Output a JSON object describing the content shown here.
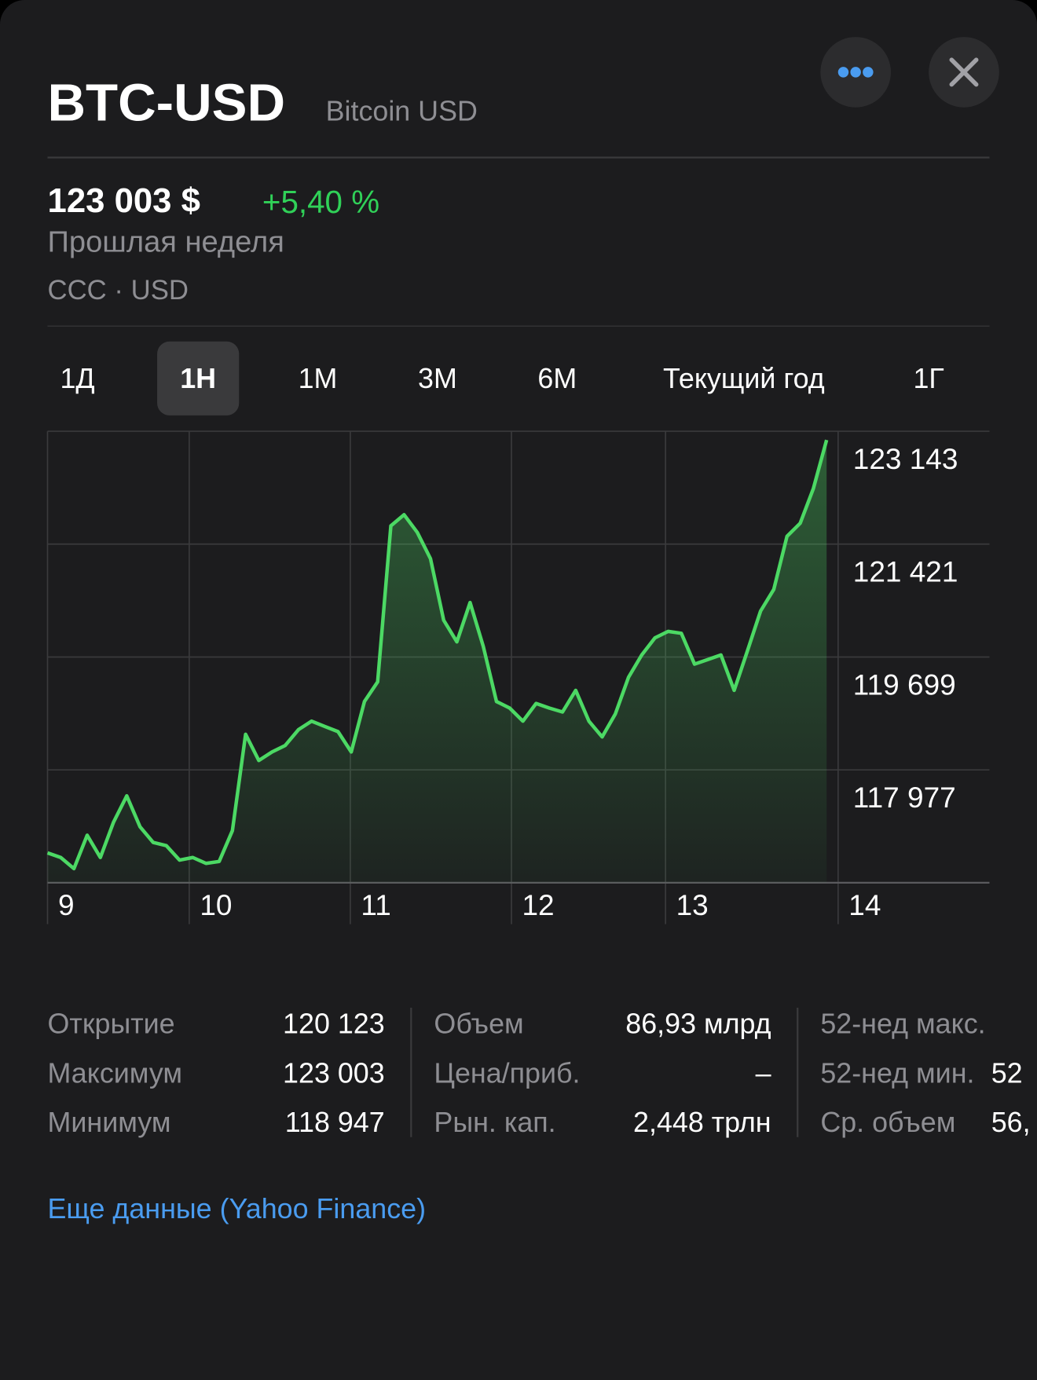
{
  "header": {
    "ticker": "BTC-USD",
    "name": "Bitcoin USD"
  },
  "quote": {
    "price": "123 003 $",
    "change": "+5,40 %",
    "period": "Прошлая неделя",
    "exchange": "CCC · USD"
  },
  "tabs": [
    {
      "label": "1Д"
    },
    {
      "label": "1Н",
      "selected": true
    },
    {
      "label": "1М"
    },
    {
      "label": "3М"
    },
    {
      "label": "6М"
    },
    {
      "label": "Текущий год"
    },
    {
      "label": "1Г"
    }
  ],
  "chart_data": {
    "type": "line",
    "color": "#4cd964",
    "grid": true,
    "x": [
      0,
      1,
      2,
      3,
      4,
      5,
      6,
      7,
      8,
      9,
      10,
      11,
      12,
      13,
      14,
      15,
      16,
      17,
      18,
      19,
      20,
      21,
      22,
      23,
      24,
      25,
      26,
      27,
      28,
      29,
      30,
      31,
      32,
      33,
      34,
      35,
      36,
      37,
      38,
      39,
      40,
      41,
      42,
      43,
      44,
      45,
      46,
      47,
      48,
      49,
      50,
      51,
      52,
      53,
      54,
      55,
      56,
      57,
      58,
      59
    ],
    "values": [
      116710,
      116640,
      116470,
      116980,
      116640,
      117180,
      117580,
      117110,
      116870,
      116820,
      116600,
      116640,
      116550,
      116580,
      117050,
      118520,
      118120,
      118250,
      118350,
      118590,
      118720,
      118640,
      118560,
      118250,
      119020,
      119320,
      121700,
      121870,
      121600,
      121200,
      120260,
      119930,
      120530,
      119860,
      119020,
      118920,
      118720,
      118990,
      118920,
      118860,
      119190,
      118720,
      118480,
      118830,
      119390,
      119730,
      119990,
      120090,
      120060,
      119590,
      119660,
      119730,
      119190,
      119790,
      120400,
      120730,
      121540,
      121740,
      122270,
      123010
    ],
    "xlim": [
      0,
      71.33
    ],
    "ylim": [
      116255,
      123143
    ],
    "xticks": [
      {
        "value": 0,
        "label": "9"
      },
      {
        "value": 10.73,
        "label": "10"
      },
      {
        "value": 22.93,
        "label": "11"
      },
      {
        "value": 35.13,
        "label": "12"
      },
      {
        "value": 46.8,
        "label": "13"
      },
      {
        "value": 59.87,
        "label": "14"
      }
    ],
    "yticks": [
      {
        "value": 123143,
        "label": "123 143"
      },
      {
        "value": 121421,
        "label": "121 421"
      },
      {
        "value": 119699,
        "label": "119 699"
      },
      {
        "value": 117977,
        "label": "117 977"
      }
    ]
  },
  "stats": [
    [
      {
        "label": "Открытие",
        "value": "120 123"
      },
      {
        "label": "Максимум",
        "value": "123 003"
      },
      {
        "label": "Минимум",
        "value": "118 947"
      }
    ],
    [
      {
        "label": "Объем",
        "value": "86,93 млрд"
      },
      {
        "label": "Цена/приб.",
        "value": "–"
      },
      {
        "label": "Рын. кап.",
        "value": "2,448 трлн"
      }
    ],
    [
      {
        "label": "52-нед макс."
      },
      {
        "label": "52-нед мин.",
        "value": "52"
      },
      {
        "label": "Ср. объем",
        "value": "56,"
      }
    ]
  ],
  "link": "Еще данные (Yahoo Finance)"
}
